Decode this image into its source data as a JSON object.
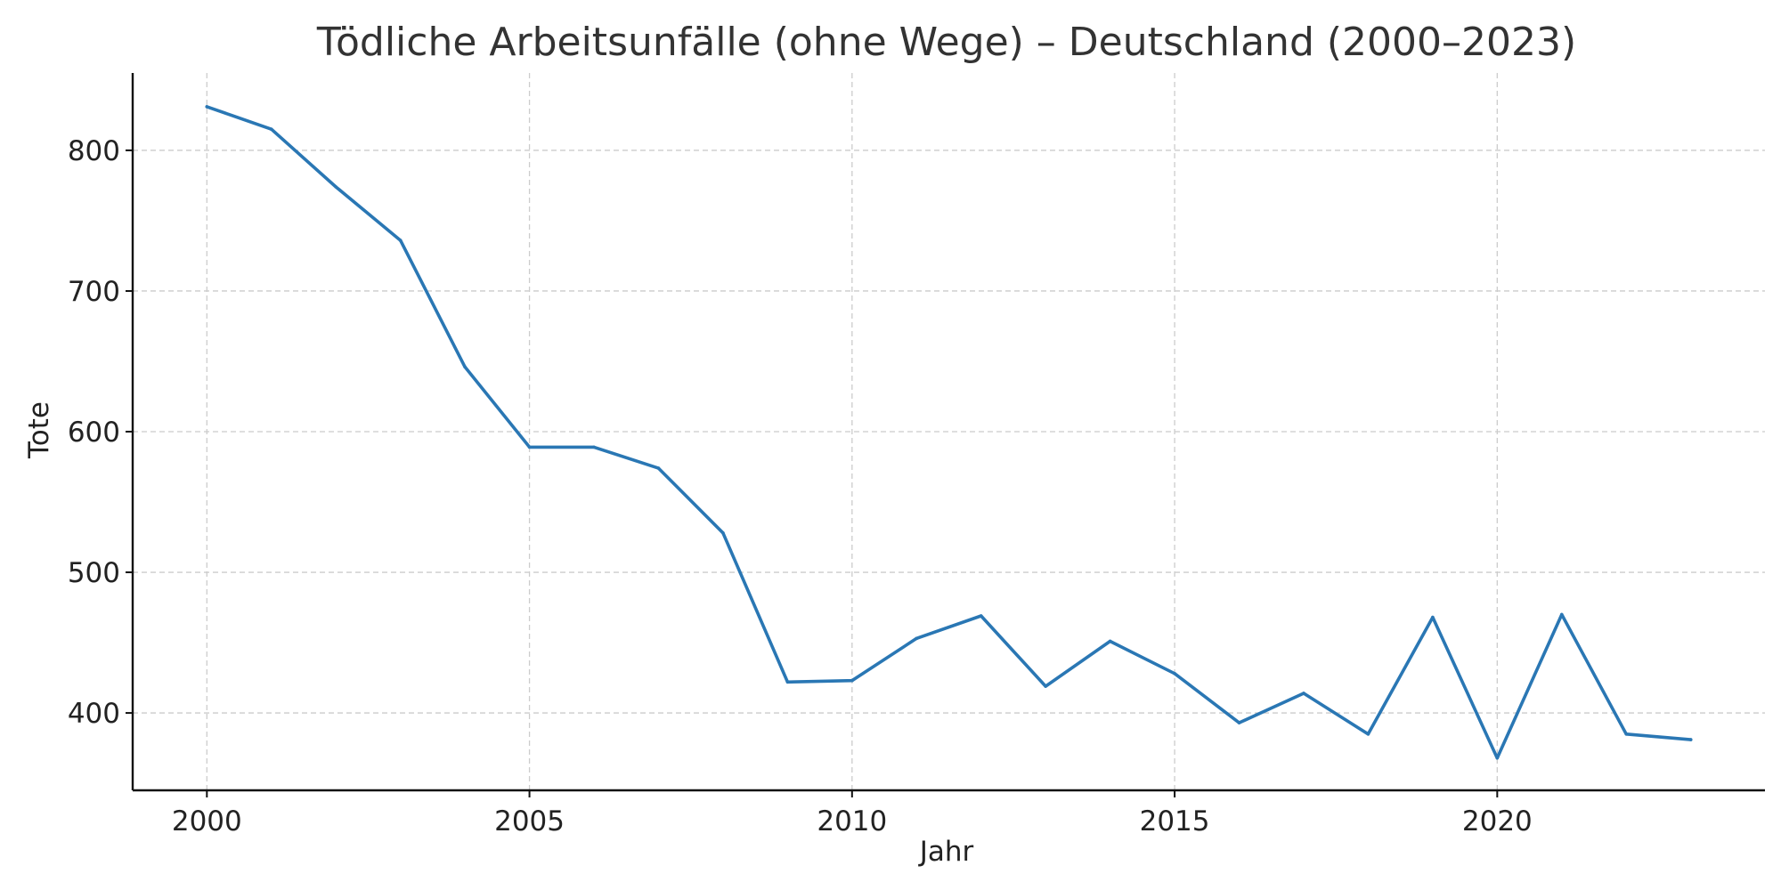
{
  "chart_data": {
    "type": "line",
    "title": "Tödliche Arbeitsunfälle (ohne Wege) – Deutschland (2000–2023)",
    "xlabel": "Jahr",
    "ylabel": "Tote",
    "xlim": [
      1998.85,
      2024.15
    ],
    "ylim": [
      345,
      855
    ],
    "xticks": [
      2000,
      2005,
      2010,
      2015,
      2020
    ],
    "yticks": [
      400,
      500,
      600,
      700,
      800
    ],
    "grid": true,
    "legend": "none",
    "series": [
      {
        "color": "#2a77b4",
        "x": [
          2000,
          2001,
          2002,
          2003,
          2004,
          2005,
          2006,
          2007,
          2008,
          2009,
          2010,
          2011,
          2012,
          2013,
          2014,
          2015,
          2016,
          2017,
          2018,
          2019,
          2020,
          2021,
          2022,
          2023
        ],
        "y": [
          831,
          815,
          774,
          736,
          646,
          589,
          589,
          574,
          528,
          422,
          423,
          453,
          469,
          419,
          451,
          428,
          393,
          414,
          385,
          468,
          368,
          470,
          385,
          381
        ]
      }
    ]
  }
}
